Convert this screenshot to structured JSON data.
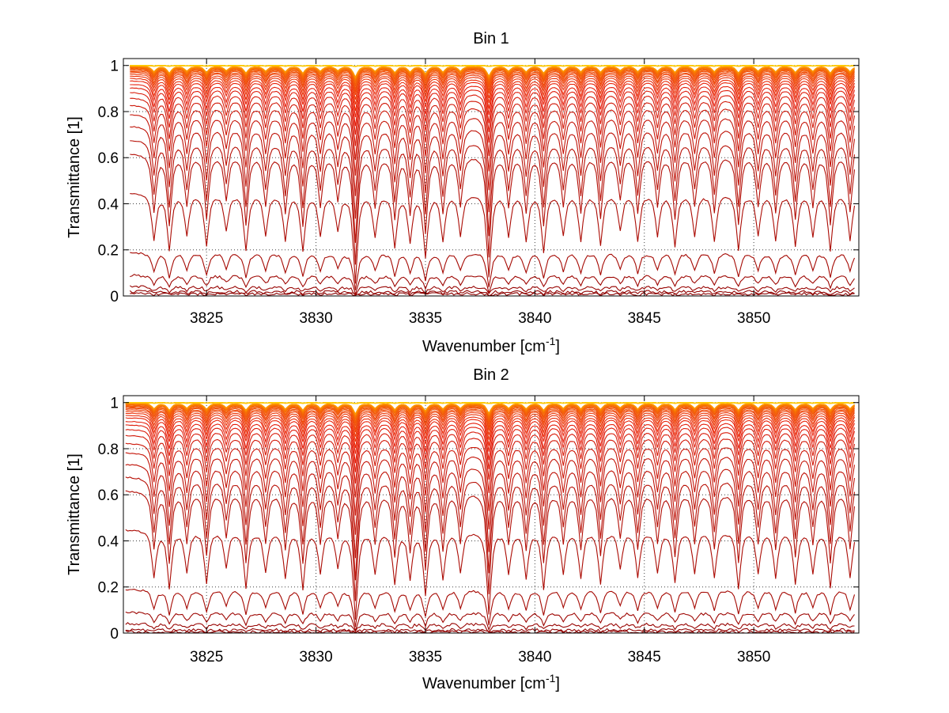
{
  "chart_data": [
    {
      "type": "line",
      "title": "Bin 1",
      "xlabel": {
        "text": "Wavenumber [cm",
        "sup": "-1",
        "close": "]"
      },
      "ylabel": "Transmittance [1]",
      "xlim": [
        3821.2,
        3854.8
      ],
      "ylim": [
        0,
        1.03
      ],
      "xticks": [
        3825,
        3830,
        3835,
        3840,
        3845,
        3850
      ],
      "xtick_labels": [
        "3825",
        "3830",
        "3835",
        "3840",
        "3845",
        "3850"
      ],
      "yticks": [
        0,
        0.2,
        0.4,
        0.6,
        0.8,
        1
      ],
      "ytick_labels": [
        "0",
        "0.2",
        "0.4",
        "0.6",
        "0.8",
        "1"
      ],
      "grid": "dotted",
      "legend": "none",
      "x_start": 3821.5,
      "x_end": 3854.6,
      "x_step": 0.1,
      "n_curves": 42,
      "baselines_note": "curves ordered from lowest (darkest red) to highest (orange/yellow)",
      "curve_baselines": [
        0.01,
        0.02,
        0.04,
        0.09,
        0.19,
        0.45,
        0.62,
        0.68,
        0.74,
        0.79,
        0.83,
        0.86,
        0.885,
        0.905,
        0.92,
        0.935,
        0.945,
        0.955,
        0.963,
        0.97,
        0.975,
        0.98,
        0.984,
        0.987,
        0.99,
        0.992,
        0.994,
        0.995,
        0.996,
        0.997,
        0.998,
        0.998,
        0.999,
        0.999,
        0.999,
        1.0,
        1.0,
        1.0,
        1.0,
        1.0,
        1.0,
        1.0
      ],
      "colors": {
        "low": "#8b0000",
        "mid": "#e8200c",
        "high": "#ffa500",
        "top": "#ffd000"
      }
    },
    {
      "type": "line",
      "title": "Bin 2",
      "xlabel": {
        "text": "Wavenumber [cm",
        "sup": "-1",
        "close": "]"
      },
      "ylabel": "Transmittance [1]",
      "xlim": [
        3821.2,
        3854.8
      ],
      "ylim": [
        0,
        1.03
      ],
      "xticks": [
        3825,
        3830,
        3835,
        3840,
        3845,
        3850
      ],
      "xtick_labels": [
        "3825",
        "3830",
        "3835",
        "3840",
        "3845",
        "3850"
      ],
      "yticks": [
        0,
        0.2,
        0.4,
        0.6,
        0.8,
        1
      ],
      "ytick_labels": [
        "0",
        "0.2",
        "0.4",
        "0.6",
        "0.8",
        "1"
      ],
      "grid": "dotted",
      "legend": "none",
      "x_start": 3821.3,
      "x_end": 3854.6,
      "x_step": 0.1,
      "n_curves": 42,
      "baselines_note": "curves ordered from lowest (darkest red) to highest (orange/yellow)",
      "curve_baselines": [
        0.005,
        0.015,
        0.04,
        0.09,
        0.19,
        0.45,
        0.62,
        0.68,
        0.735,
        0.785,
        0.825,
        0.86,
        0.885,
        0.905,
        0.92,
        0.935,
        0.945,
        0.955,
        0.963,
        0.97,
        0.975,
        0.98,
        0.984,
        0.987,
        0.99,
        0.992,
        0.994,
        0.995,
        0.996,
        0.997,
        0.998,
        0.998,
        0.999,
        0.999,
        0.999,
        1.0,
        1.0,
        1.0,
        1.0,
        1.0,
        1.0,
        1.0
      ],
      "colors": {
        "low": "#8b0000",
        "mid": "#e8200c",
        "high": "#ffa500",
        "top": "#ffd000"
      }
    }
  ],
  "absorption_lines": [
    {
      "x": 3822.6,
      "depth": 0.45
    },
    {
      "x": 3823.3,
      "depth": 0.55
    },
    {
      "x": 3824.1,
      "depth": 0.4
    },
    {
      "x": 3825.0,
      "depth": 0.5
    },
    {
      "x": 3825.9,
      "depth": 0.35
    },
    {
      "x": 3826.8,
      "depth": 0.55
    },
    {
      "x": 3827.7,
      "depth": 0.4
    },
    {
      "x": 3828.6,
      "depth": 0.45
    },
    {
      "x": 3829.4,
      "depth": 0.55
    },
    {
      "x": 3830.2,
      "depth": 0.4
    },
    {
      "x": 3831.0,
      "depth": 0.35
    },
    {
      "x": 3831.8,
      "depth": 0.85
    },
    {
      "x": 3832.7,
      "depth": 0.4
    },
    {
      "x": 3833.6,
      "depth": 0.5
    },
    {
      "x": 3834.3,
      "depth": 0.45
    },
    {
      "x": 3835.0,
      "depth": 0.6
    },
    {
      "x": 3835.8,
      "depth": 0.45
    },
    {
      "x": 3836.6,
      "depth": 0.4
    },
    {
      "x": 3837.9,
      "depth": 0.8
    },
    {
      "x": 3838.8,
      "depth": 0.4
    },
    {
      "x": 3839.6,
      "depth": 0.45
    },
    {
      "x": 3840.4,
      "depth": 0.55
    },
    {
      "x": 3841.3,
      "depth": 0.4
    },
    {
      "x": 3842.1,
      "depth": 0.45
    },
    {
      "x": 3843.0,
      "depth": 0.5
    },
    {
      "x": 3843.9,
      "depth": 0.35
    },
    {
      "x": 3844.7,
      "depth": 0.45
    },
    {
      "x": 3845.6,
      "depth": 0.4
    },
    {
      "x": 3846.4,
      "depth": 0.5
    },
    {
      "x": 3847.3,
      "depth": 0.4
    },
    {
      "x": 3848.2,
      "depth": 0.45
    },
    {
      "x": 3849.3,
      "depth": 0.55
    },
    {
      "x": 3850.2,
      "depth": 0.4
    },
    {
      "x": 3851.0,
      "depth": 0.45
    },
    {
      "x": 3851.9,
      "depth": 0.5
    },
    {
      "x": 3852.7,
      "depth": 0.4
    },
    {
      "x": 3853.5,
      "depth": 0.55
    },
    {
      "x": 3854.4,
      "depth": 0.45
    }
  ]
}
